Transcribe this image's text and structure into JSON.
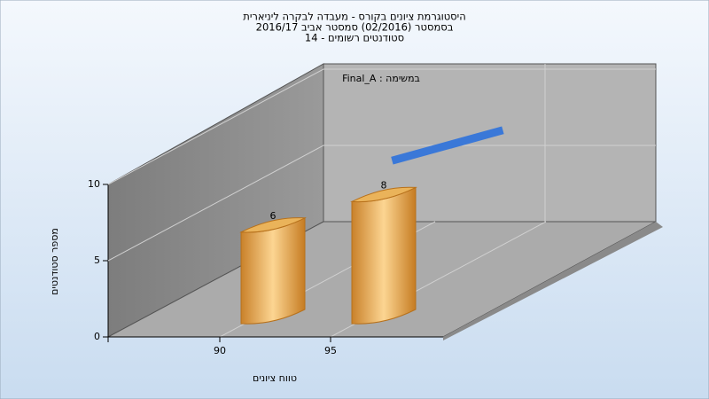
{
  "chart_data": {
    "type": "bar3d",
    "title": [
      "היסטוגרמת ציונים בקורס - מעבדה לבקרה ליניארית",
      "בסמסטר  (02/2016)  סמסטר אביב 2016/17",
      "סטודנטים רשומים - 14"
    ],
    "annotation": "Final_A : במשימה",
    "x_label": "טווח ציונים",
    "y_label": "מספר סטודנטים",
    "categories": [
      "90",
      "95"
    ],
    "series": [
      {
        "type": "bar",
        "color": "#e8a53c",
        "values": [
          6,
          8
        ]
      },
      {
        "type": "line",
        "color": "#3a78d8",
        "values": [
          4,
          6
        ]
      }
    ],
    "ylim": [
      0,
      10
    ],
    "yticks": [
      0,
      5,
      10
    ],
    "grid": true
  }
}
